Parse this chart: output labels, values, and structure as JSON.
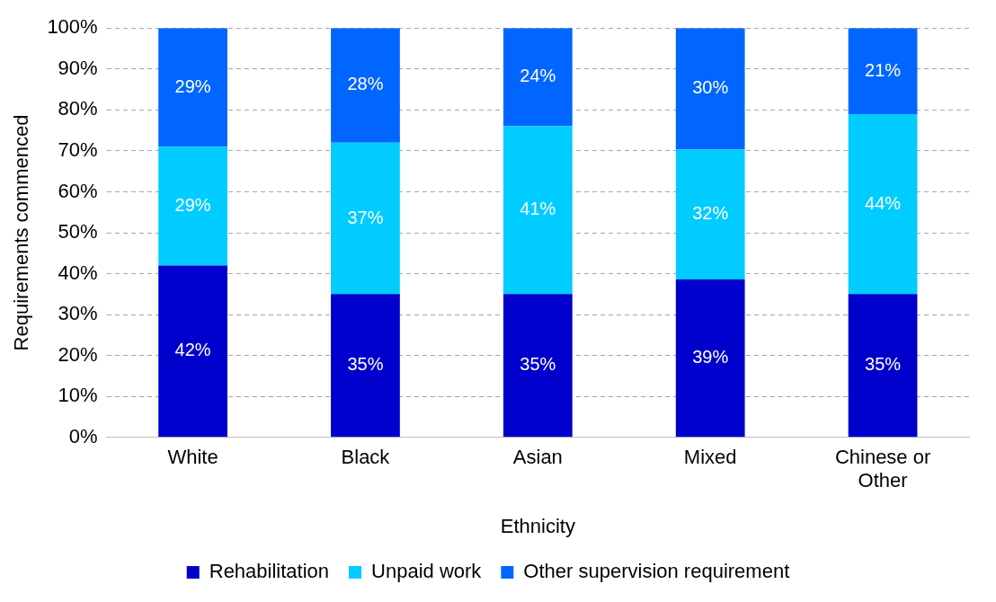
{
  "chart_data": {
    "type": "bar",
    "stacked": true,
    "xlabel": "Ethnicity",
    "ylabel": "Requirements commenced",
    "categories": [
      "White",
      "Black",
      "Asian",
      "Mixed",
      "Chinese or Other"
    ],
    "series": [
      {
        "name": "Rehabilitation",
        "color": "#0000cc",
        "values": [
          42,
          35,
          35,
          38.6,
          35
        ],
        "value_labels": [
          "42%",
          "35%",
          "35%",
          "39%",
          "35%"
        ]
      },
      {
        "name": "Unpaid work",
        "color": "#00ccff",
        "values": [
          29,
          37,
          41,
          31.7,
          44
        ],
        "value_labels": [
          "29%",
          "37%",
          "41%",
          "32%",
          "44%"
        ]
      },
      {
        "name": "Other supervision requirement",
        "color": "#0066ff",
        "values": [
          29,
          28,
          24,
          29.7,
          21
        ],
        "value_labels": [
          "29%",
          "28%",
          "24%",
          "30%",
          "21%"
        ]
      }
    ],
    "ylim": [
      0,
      100
    ],
    "yticks": [
      {
        "value": 0,
        "label": "0%"
      },
      {
        "value": 10,
        "label": "10%"
      },
      {
        "value": 20,
        "label": "20%"
      },
      {
        "value": 30,
        "label": "30%"
      },
      {
        "value": 40,
        "label": "40%"
      },
      {
        "value": 50,
        "label": "50%"
      },
      {
        "value": 60,
        "label": "60%"
      },
      {
        "value": 70,
        "label": "70%"
      },
      {
        "value": 80,
        "label": "80%"
      },
      {
        "value": 90,
        "label": "90%"
      },
      {
        "value": 100,
        "label": "100%"
      }
    ],
    "grid": "y",
    "legend": "bottom"
  }
}
